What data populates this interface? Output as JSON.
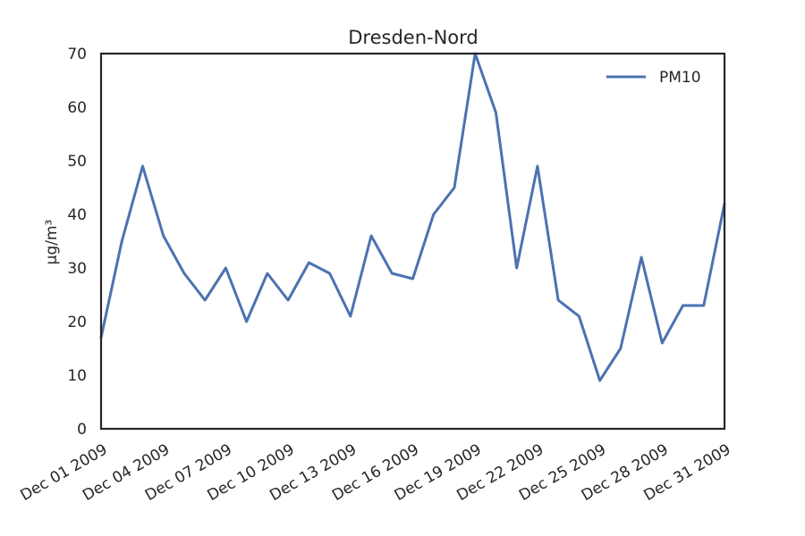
{
  "chart_data": {
    "type": "line",
    "title": "Dresden-Nord",
    "xlabel": "",
    "ylabel": "µg/m³",
    "ylim": [
      0,
      70
    ],
    "xlim": [
      "2009-12-01",
      "2009-12-31"
    ],
    "yticks": [
      0,
      10,
      20,
      30,
      40,
      50,
      60,
      70
    ],
    "xticks": [
      {
        "date": "2009-12-01",
        "label": "Dec 01 2009"
      },
      {
        "date": "2009-12-04",
        "label": "Dec 04 2009"
      },
      {
        "date": "2009-12-07",
        "label": "Dec 07 2009"
      },
      {
        "date": "2009-12-10",
        "label": "Dec 10 2009"
      },
      {
        "date": "2009-12-13",
        "label": "Dec 13 2009"
      },
      {
        "date": "2009-12-16",
        "label": "Dec 16 2009"
      },
      {
        "date": "2009-12-19",
        "label": "Dec 19 2009"
      },
      {
        "date": "2009-12-22",
        "label": "Dec 22 2009"
      },
      {
        "date": "2009-12-25",
        "label": "Dec 25 2009"
      },
      {
        "date": "2009-12-28",
        "label": "Dec 28 2009"
      },
      {
        "date": "2009-12-31",
        "label": "Dec 31 2009"
      }
    ],
    "grid": false,
    "legend_position": "top-right",
    "x": [
      "2009-12-01",
      "2009-12-02",
      "2009-12-03",
      "2009-12-04",
      "2009-12-05",
      "2009-12-06",
      "2009-12-07",
      "2009-12-08",
      "2009-12-09",
      "2009-12-10",
      "2009-12-11",
      "2009-12-12",
      "2009-12-13",
      "2009-12-14",
      "2009-12-15",
      "2009-12-16",
      "2009-12-17",
      "2009-12-18",
      "2009-12-19",
      "2009-12-20",
      "2009-12-21",
      "2009-12-22",
      "2009-12-23",
      "2009-12-24",
      "2009-12-25",
      "2009-12-26",
      "2009-12-27",
      "2009-12-28",
      "2009-12-29",
      "2009-12-30",
      "2009-12-31"
    ],
    "series": [
      {
        "name": "PM10",
        "color": "#4c72b0",
        "values": [
          17,
          35,
          49,
          36,
          29,
          24,
          30,
          20,
          29,
          24,
          31,
          29,
          21,
          36,
          29,
          28,
          40,
          45,
          70,
          59,
          30,
          49,
          24,
          21,
          9,
          15,
          32,
          16,
          23,
          23,
          42
        ]
      }
    ]
  }
}
